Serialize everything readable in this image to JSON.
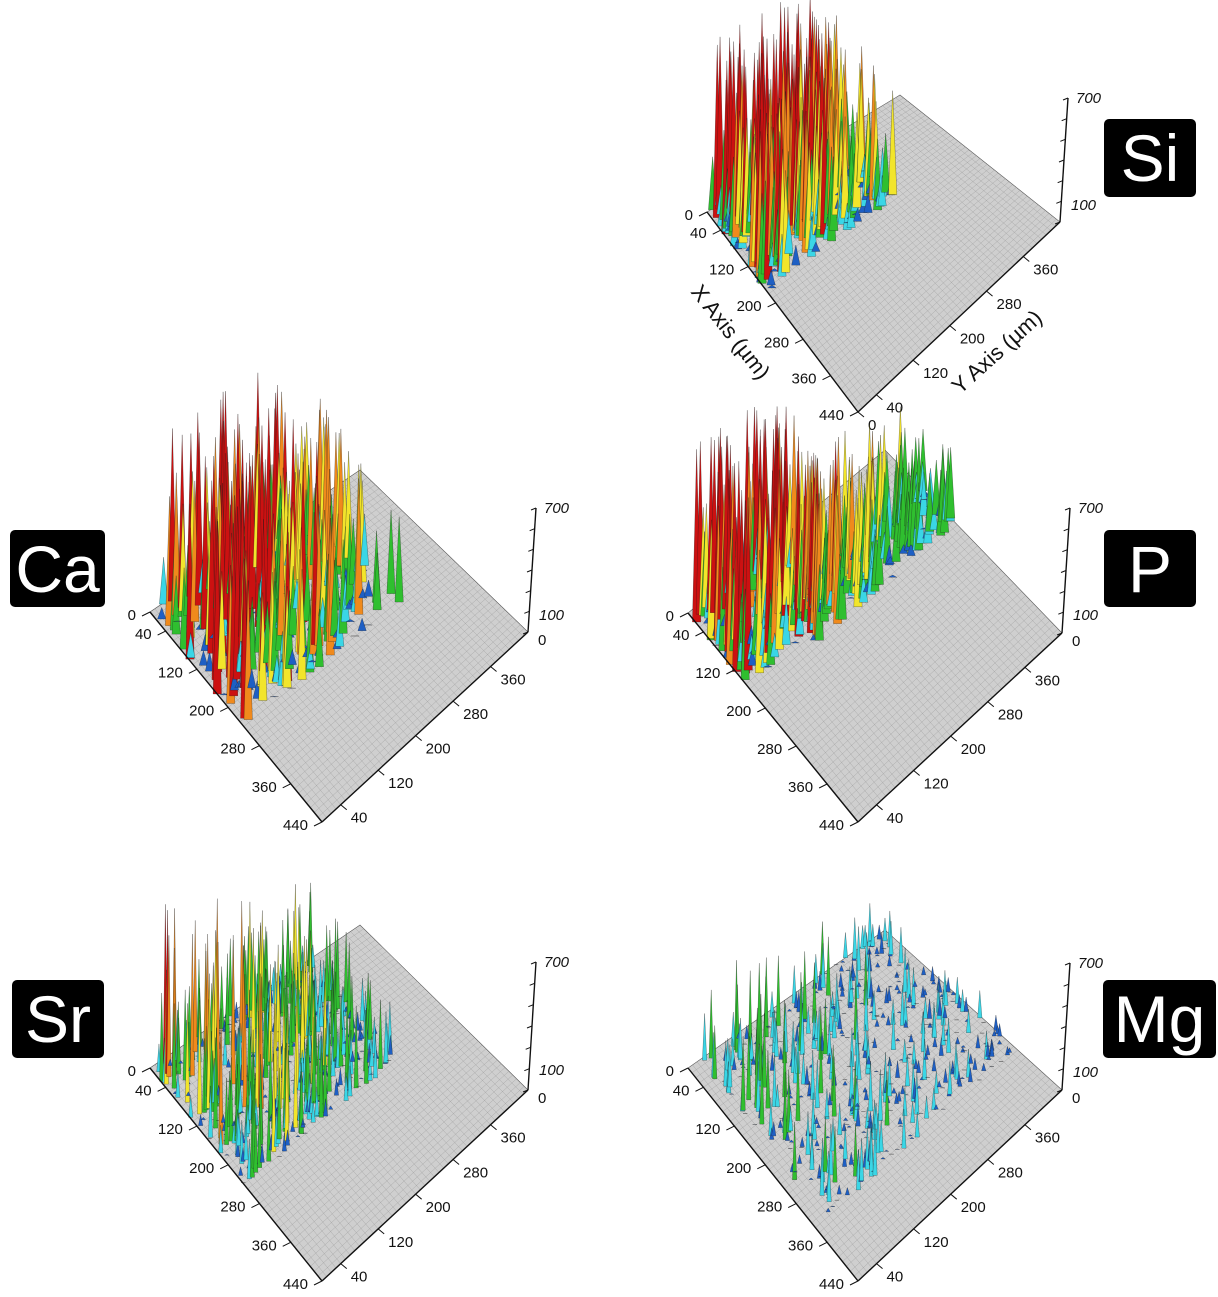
{
  "chart_data": [
    {
      "type": "surface3d",
      "element": "Si",
      "title": "",
      "xlabel": "X Axis (µm)",
      "ylabel": "Y Axis (µm)",
      "zlabel": "",
      "x_ticks": [
        "0",
        "40",
        "120",
        "200",
        "280",
        "360",
        "440"
      ],
      "y_ticks": [
        "0",
        "40",
        "120",
        "200",
        "280",
        "360"
      ],
      "z_ticks": [
        "100",
        "700"
      ],
      "xlim": [
        0,
        440
      ],
      "ylim": [
        0,
        440
      ],
      "zlim": [
        0,
        700
      ],
      "colormap": [
        "#1e5fc4",
        "#3ad6e6",
        "#2fbf2f",
        "#f2e52b",
        "#f08a1c",
        "#cc1111"
      ]
    },
    {
      "type": "surface3d",
      "element": "Ca",
      "title": "",
      "xlabel": "",
      "ylabel": "",
      "zlabel": "",
      "x_ticks": [
        "0",
        "40",
        "120",
        "200",
        "280",
        "360",
        "440"
      ],
      "y_ticks": [
        "40",
        "120",
        "200",
        "280",
        "360"
      ],
      "z_ticks": [
        "0",
        "100",
        "700"
      ],
      "xlim": [
        0,
        440
      ],
      "ylim": [
        0,
        440
      ],
      "zlim": [
        0,
        700
      ],
      "colormap": [
        "#1e5fc4",
        "#3ad6e6",
        "#2fbf2f",
        "#f2e52b",
        "#f08a1c",
        "#cc1111"
      ]
    },
    {
      "type": "surface3d",
      "element": "P",
      "title": "",
      "xlabel": "",
      "ylabel": "",
      "zlabel": "",
      "x_ticks": [
        "0",
        "40",
        "120",
        "200",
        "280",
        "360",
        "440"
      ],
      "y_ticks": [
        "40",
        "120",
        "200",
        "280",
        "360"
      ],
      "z_ticks": [
        "0",
        "100",
        "700"
      ],
      "xlim": [
        0,
        440
      ],
      "ylim": [
        0,
        440
      ],
      "zlim": [
        0,
        700
      ],
      "colormap": [
        "#1e5fc4",
        "#3ad6e6",
        "#2fbf2f",
        "#f2e52b",
        "#f08a1c",
        "#cc1111"
      ]
    },
    {
      "type": "surface3d",
      "element": "Sr",
      "title": "",
      "xlabel": "",
      "ylabel": "",
      "zlabel": "",
      "x_ticks": [
        "0",
        "40",
        "120",
        "200",
        "280",
        "360",
        "440"
      ],
      "y_ticks": [
        "40",
        "120",
        "200",
        "280",
        "360"
      ],
      "z_ticks": [
        "0",
        "100",
        "700"
      ],
      "xlim": [
        0,
        440
      ],
      "ylim": [
        0,
        440
      ],
      "zlim": [
        0,
        700
      ],
      "colormap": [
        "#1e5fc4",
        "#3ad6e6",
        "#2fbf2f",
        "#f2e52b",
        "#f08a1c",
        "#cc1111"
      ]
    },
    {
      "type": "surface3d",
      "element": "Mg",
      "title": "",
      "xlabel": "",
      "ylabel": "",
      "zlabel": "",
      "x_ticks": [
        "0",
        "40",
        "120",
        "200",
        "280",
        "360",
        "440"
      ],
      "y_ticks": [
        "40",
        "120",
        "200",
        "280",
        "360"
      ],
      "z_ticks": [
        "0",
        "100",
        "700"
      ],
      "xlim": [
        0,
        440
      ],
      "ylim": [
        0,
        440
      ],
      "zlim": [
        0,
        700
      ],
      "colormap": [
        "#1e5fc4",
        "#3ad6e6",
        "#2fbf2f",
        "#f2e52b",
        "#f08a1c",
        "#cc1111"
      ]
    }
  ]
}
